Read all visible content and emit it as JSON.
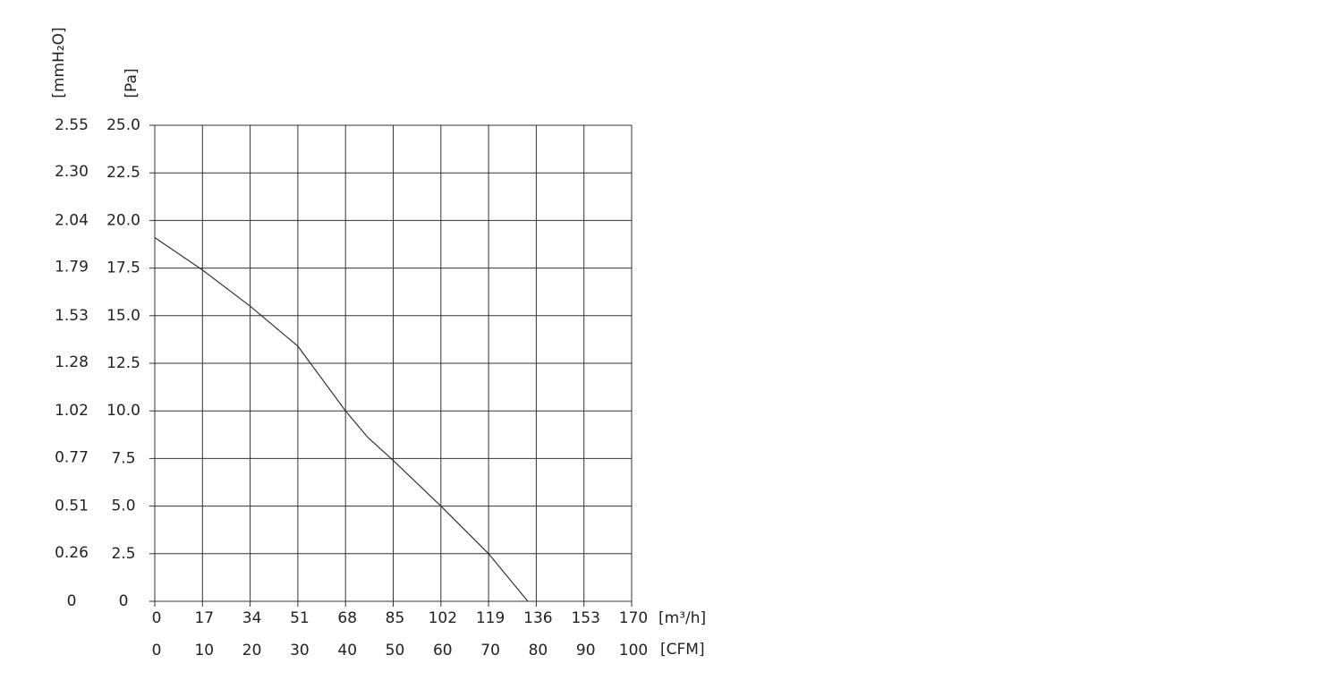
{
  "chart_data": {
    "type": "line",
    "x": [
      0,
      17,
      34,
      51,
      68,
      76,
      85,
      102,
      119,
      133
    ],
    "values": [
      19.1,
      17.4,
      15.5,
      13.4,
      10.0,
      8.6,
      7.4,
      5.0,
      2.5,
      0
    ],
    "color": "#333333",
    "xlabel": "[m³/h]",
    "x2label": "[CFM]",
    "ylabel": "[Pa]",
    "y2label": "[mmH₂O]",
    "xlim": [
      0,
      170
    ],
    "xticks": [
      0,
      17,
      34,
      51,
      68,
      85,
      102,
      119,
      136,
      153,
      170
    ],
    "x2lim": [
      0,
      100
    ],
    "x2ticks": [
      0,
      10,
      20,
      30,
      40,
      50,
      60,
      70,
      80,
      90,
      100
    ],
    "ylim": [
      0,
      25
    ],
    "yticks": [
      0,
      2.5,
      {
        "value": 5,
        "label": "5.0"
      },
      7.5,
      {
        "value": 10,
        "label": "10.0"
      },
      12.5,
      {
        "value": 15,
        "label": "15.0"
      },
      17.5,
      {
        "value": 20,
        "label": "20.0"
      },
      22.5,
      {
        "value": 25,
        "label": "25.0"
      }
    ],
    "y2lim": [
      0,
      2.55
    ],
    "y2ticks": [
      0,
      0.26,
      0.51,
      0.77,
      1.02,
      1.28,
      1.53,
      1.79,
      2.04,
      {
        "value": 2.3,
        "label": "2.30"
      },
      2.55
    ],
    "grid": true
  }
}
